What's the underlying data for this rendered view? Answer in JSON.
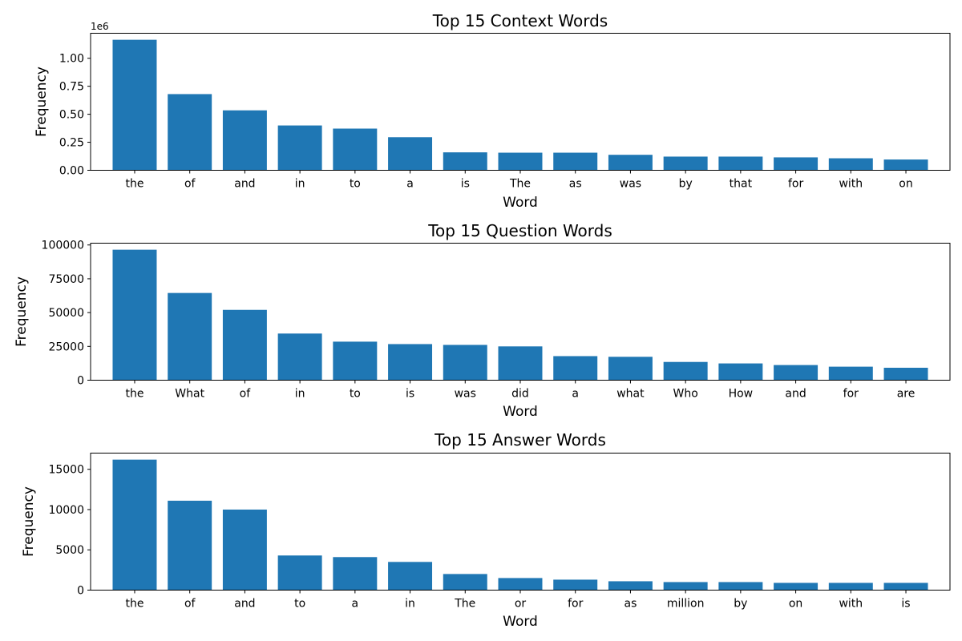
{
  "chart_data": [
    {
      "type": "bar",
      "title": "Top 15 Context Words",
      "xlabel": "Word",
      "ylabel": "Frequency",
      "offset_text": "1e6",
      "categories": [
        "the",
        "of",
        "and",
        "in",
        "to",
        "a",
        "is",
        "The",
        "as",
        "was",
        "by",
        "that",
        "for",
        "with",
        "on"
      ],
      "values": [
        1165000,
        680000,
        535000,
        400000,
        372000,
        295000,
        160000,
        157000,
        157000,
        138000,
        122000,
        122000,
        115000,
        107000,
        96000
      ],
      "ylim": [
        0,
        1223250
      ],
      "yticks": [
        0,
        250000,
        500000,
        750000,
        1000000
      ],
      "ytick_labels": [
        "0.00",
        "0.25",
        "0.50",
        "0.75",
        "1.00"
      ],
      "grid": false,
      "bar_color": "#1f77b4"
    },
    {
      "type": "bar",
      "title": "Top 15 Question Words",
      "xlabel": "Word",
      "ylabel": "Frequency",
      "categories": [
        "the",
        "What",
        "of",
        "in",
        "to",
        "is",
        "was",
        "did",
        "a",
        "what",
        "Who",
        "How",
        "and",
        "for",
        "are"
      ],
      "values": [
        96500,
        64500,
        52000,
        34500,
        28500,
        26700,
        26100,
        25000,
        17800,
        17300,
        13500,
        12400,
        11200,
        10000,
        9200
      ],
      "ylim": [
        0,
        101325
      ],
      "yticks": [
        0,
        25000,
        50000,
        75000,
        100000
      ],
      "ytick_labels": [
        "0",
        "25000",
        "50000",
        "75000",
        "100000"
      ],
      "grid": false,
      "bar_color": "#1f77b4"
    },
    {
      "type": "bar",
      "title": "Top 15 Answer Words",
      "xlabel": "Word",
      "ylabel": "Frequency",
      "categories": [
        "the",
        "of",
        "and",
        "to",
        "a",
        "in",
        "The",
        "or",
        "for",
        "as",
        "million",
        "by",
        "on",
        "with",
        "is"
      ],
      "values": [
        16200,
        11100,
        10000,
        4300,
        4100,
        3500,
        2000,
        1500,
        1300,
        1100,
        1000,
        1000,
        900,
        900,
        900
      ],
      "ylim": [
        0,
        17010
      ],
      "yticks": [
        0,
        5000,
        10000,
        15000
      ],
      "ytick_labels": [
        "0",
        "5000",
        "10000",
        "15000"
      ],
      "grid": false,
      "bar_color": "#1f77b4"
    }
  ]
}
